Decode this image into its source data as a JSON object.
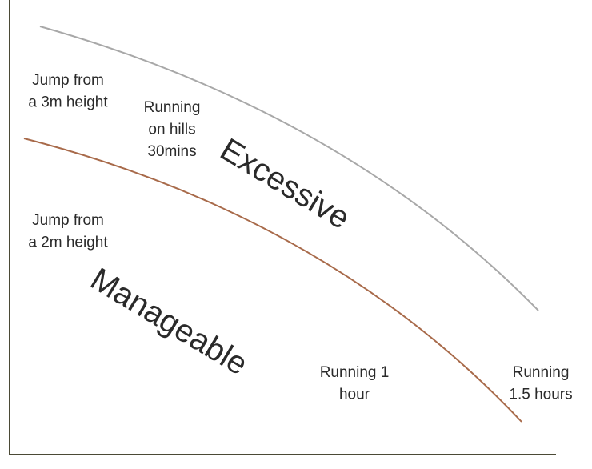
{
  "labels": [
    {
      "lines": [
        "Jump from",
        "a 3m height"
      ]
    },
    {
      "lines": [
        "Running",
        "on hills",
        "30mins"
      ]
    },
    {
      "lines": [
        "Jump from",
        "a 2m height"
      ]
    },
    {
      "lines": [
        "Running 1",
        "hour"
      ]
    },
    {
      "lines": [
        "Running",
        "1.5 hours"
      ]
    }
  ],
  "zones": [
    "Excessive",
    "Manageable"
  ]
}
